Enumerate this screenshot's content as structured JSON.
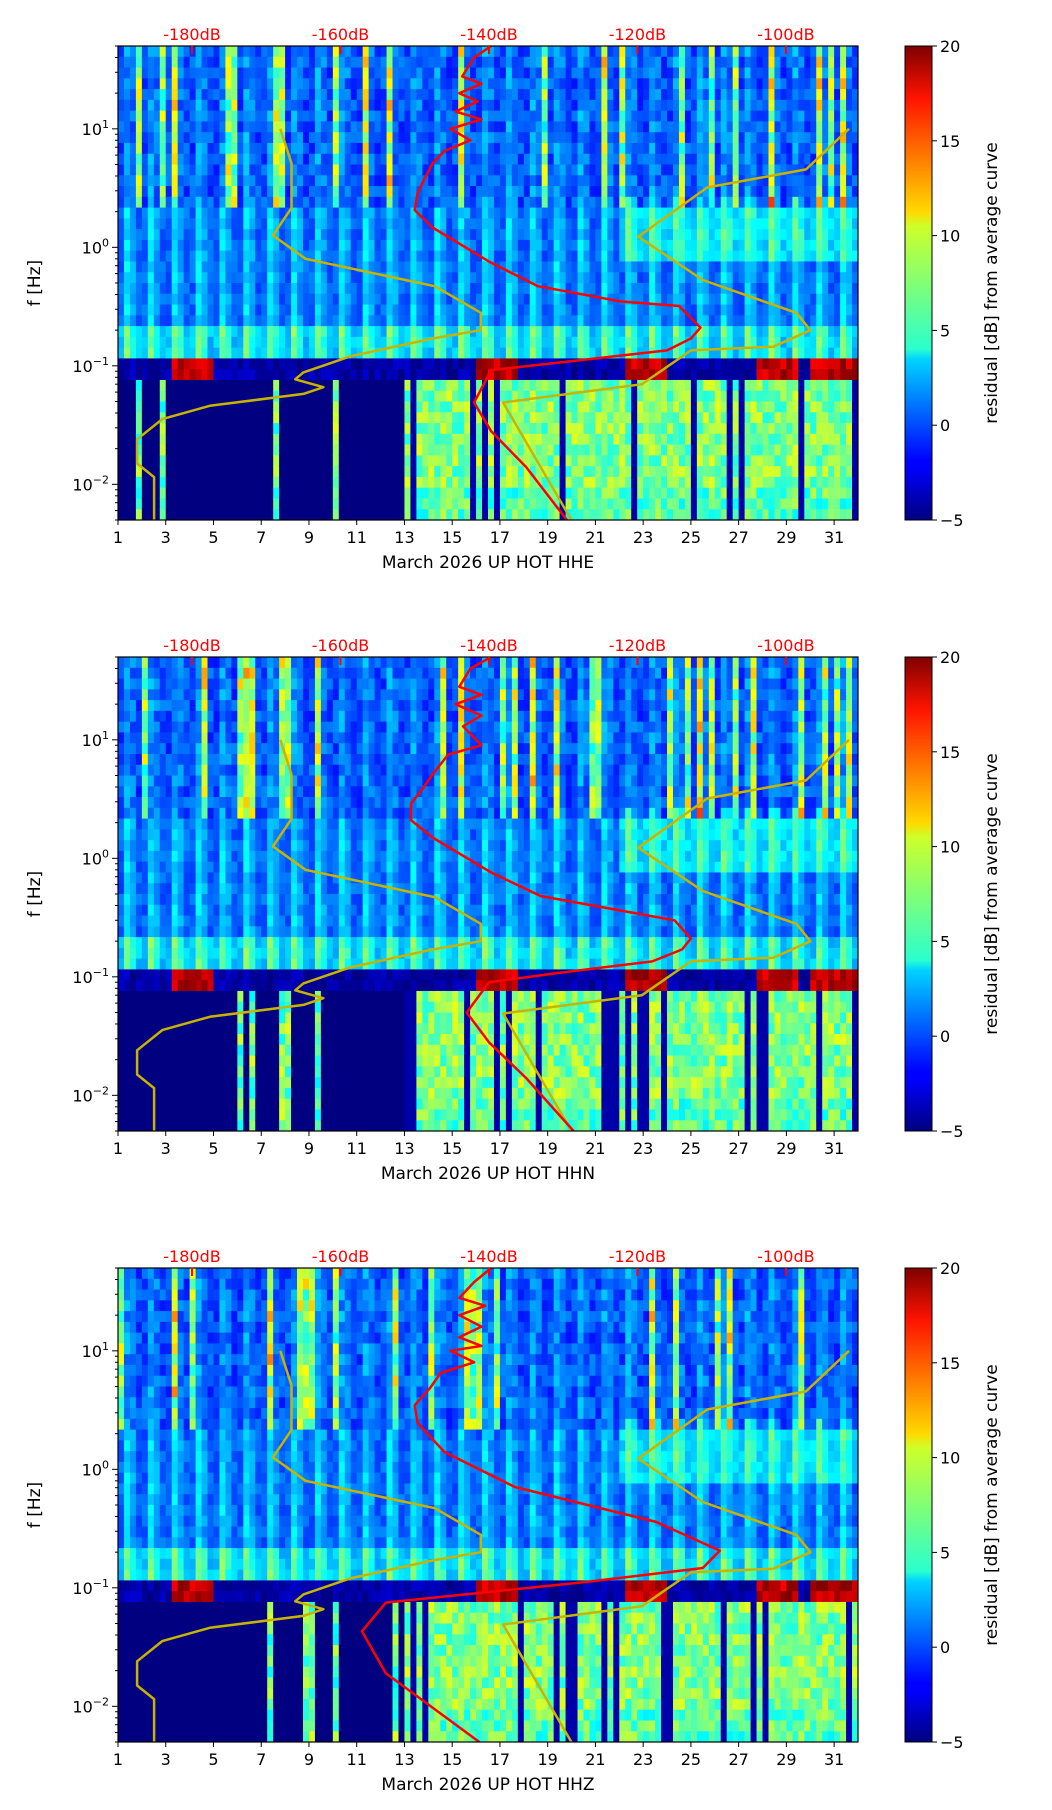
{
  "chart_data": [
    {
      "type": "heatmap",
      "title": "",
      "xlabel": "March 2026 UP HOT  HHE",
      "ylabel": "f [Hz]",
      "xlim": [
        1,
        32
      ],
      "ylim": [
        0.005,
        50
      ],
      "yscale": "log",
      "xticks": [
        "1",
        "3",
        "5",
        "7",
        "9",
        "11",
        "13",
        "15",
        "17",
        "19",
        "21",
        "23",
        "25",
        "27",
        "29",
        "31"
      ],
      "yticks": [
        "10^-2",
        "10^-1",
        "10^0",
        "10^1"
      ],
      "top_axis_ticks": [
        "-180dB",
        "-160dB",
        "-140dB",
        "-120dB",
        "-100dB"
      ],
      "colorbar": {
        "label": "residual [dB] from average curve",
        "range": [
          -5,
          20
        ],
        "ticks": [
          "−5",
          "0",
          "5",
          "10",
          "15",
          "20"
        ],
        "colormap": "jet"
      },
      "red_curve_dB_vs_f": [
        [
          -139.7,
          50
        ],
        [
          -142,
          40
        ],
        [
          -143.6,
          27.7
        ],
        [
          -141,
          24
        ],
        [
          -144,
          20
        ],
        [
          -141.5,
          17
        ],
        [
          -144.5,
          14
        ],
        [
          -141,
          12
        ],
        [
          -145.2,
          10
        ],
        [
          -142.5,
          8
        ],
        [
          -146,
          6.5
        ],
        [
          -147.6,
          5.1
        ],
        [
          -148.5,
          4
        ],
        [
          -149.6,
          2.9
        ],
        [
          -150,
          2.06
        ],
        [
          -147.6,
          1.47
        ],
        [
          -139.7,
          0.74
        ],
        [
          -133.4,
          0.47
        ],
        [
          -122.3,
          0.35
        ],
        [
          -114.4,
          0.32
        ],
        [
          -111.5,
          0.21
        ],
        [
          -112.8,
          0.17
        ],
        [
          -116,
          0.135
        ],
        [
          -130.2,
          0.107
        ],
        [
          -139.7,
          0.092
        ],
        [
          -142,
          0.049
        ],
        [
          -139.7,
          0.028
        ],
        [
          -135,
          0.014
        ],
        [
          -129.5,
          0.005
        ]
      ]
    },
    {
      "type": "heatmap",
      "title": "",
      "xlabel": "March 2026 UP HOT  HHN",
      "ylabel": "f [Hz]",
      "xlim": [
        1,
        32
      ],
      "ylim": [
        0.005,
        50
      ],
      "yscale": "log",
      "xticks": [
        "1",
        "3",
        "5",
        "7",
        "9",
        "11",
        "13",
        "15",
        "17",
        "19",
        "21",
        "23",
        "25",
        "27",
        "29",
        "31"
      ],
      "yticks": [
        "10^-2",
        "10^-1",
        "10^0",
        "10^1"
      ],
      "top_axis_ticks": [
        "-180dB",
        "-160dB",
        "-140dB",
        "-120dB",
        "-100dB"
      ],
      "colorbar": {
        "label": "residual [dB] from average curve",
        "range": [
          -5,
          20
        ],
        "ticks": [
          "−5",
          "0",
          "5",
          "10",
          "15",
          "20"
        ],
        "colormap": "jet"
      },
      "red_curve_dB_vs_f": [
        [
          -139.7,
          50
        ],
        [
          -142.5,
          40
        ],
        [
          -144,
          28
        ],
        [
          -141,
          24
        ],
        [
          -144.5,
          20
        ],
        [
          -141,
          16
        ],
        [
          -143.5,
          13
        ],
        [
          -141,
          9
        ],
        [
          -145.5,
          7.5
        ],
        [
          -147.6,
          5.1
        ],
        [
          -149,
          3.8
        ],
        [
          -150.5,
          2.9
        ],
        [
          -150.5,
          2.1
        ],
        [
          -147.6,
          1.5
        ],
        [
          -139.7,
          0.76
        ],
        [
          -133,
          0.48
        ],
        [
          -122,
          0.36
        ],
        [
          -115,
          0.3
        ],
        [
          -112.8,
          0.21
        ],
        [
          -114,
          0.17
        ],
        [
          -118,
          0.135
        ],
        [
          -131,
          0.107
        ],
        [
          -140,
          0.09
        ],
        [
          -143,
          0.05
        ],
        [
          -140,
          0.028
        ],
        [
          -135,
          0.014
        ],
        [
          -128.6,
          0.005
        ]
      ]
    },
    {
      "type": "heatmap",
      "title": "",
      "xlabel": "March 2026 UP HOT  HHZ",
      "ylabel": "f [Hz]",
      "xlim": [
        1,
        32
      ],
      "ylim": [
        0.005,
        50
      ],
      "yscale": "log",
      "xticks": [
        "1",
        "3",
        "5",
        "7",
        "9",
        "11",
        "13",
        "15",
        "17",
        "19",
        "21",
        "23",
        "25",
        "27",
        "29",
        "31"
      ],
      "yticks": [
        "10^-2",
        "10^-1",
        "10^0",
        "10^1"
      ],
      "top_axis_ticks": [
        "-180dB",
        "-160dB",
        "-140dB",
        "-120dB",
        "-100dB"
      ],
      "colorbar": {
        "label": "residual [dB] from average curve",
        "range": [
          -5,
          20
        ],
        "ticks": [
          "−5",
          "0",
          "5",
          "10",
          "15",
          "20"
        ],
        "colormap": "jet"
      },
      "red_curve_dB_vs_f": [
        [
          -139.7,
          50
        ],
        [
          -142,
          38
        ],
        [
          -144,
          28
        ],
        [
          -140.5,
          24
        ],
        [
          -144,
          20
        ],
        [
          -141,
          16
        ],
        [
          -144,
          13
        ],
        [
          -141,
          11
        ],
        [
          -145.2,
          10
        ],
        [
          -142,
          8
        ],
        [
          -146.5,
          6.5
        ],
        [
          -148,
          4.8
        ],
        [
          -150,
          3.47
        ],
        [
          -149.6,
          2.46
        ],
        [
          -146,
          1.4
        ],
        [
          -136.5,
          0.71
        ],
        [
          -117.5,
          0.36
        ],
        [
          -108.9,
          0.206
        ],
        [
          -111.2,
          0.147
        ],
        [
          -127,
          0.112
        ],
        [
          -153.9,
          0.075
        ],
        [
          -157.1,
          0.043
        ],
        [
          -153.9,
          0.019
        ],
        [
          -141.3,
          0.005
        ]
      ]
    }
  ],
  "reference_curves": {
    "nlnm_dB_vs_f": [
      [
        -168.1,
        10
      ],
      [
        -166.6,
        5.1
      ],
      [
        -166.6,
        2.15
      ],
      [
        -169.1,
        1.26
      ],
      [
        -164.7,
        0.8
      ],
      [
        -147.3,
        0.47
      ],
      [
        -141.1,
        0.28
      ],
      [
        -141.1,
        0.2
      ],
      [
        -147.6,
        0.17
      ],
      [
        -158.7,
        0.12
      ],
      [
        -165,
        0.088
      ],
      [
        -166.1,
        0.077
      ],
      [
        -162.3,
        0.066
      ],
      [
        -165,
        0.058
      ],
      [
        -177.6,
        0.046
      ],
      [
        -184,
        0.0355
      ],
      [
        -187.4,
        0.024
      ],
      [
        -187.4,
        0.015
      ],
      [
        -185.1,
        0.0115
      ],
      [
        -185.1,
        0.005
      ]
    ],
    "nhnm_dB_vs_f": [
      [
        -91.5,
        10
      ],
      [
        -97.3,
        4.55
      ],
      [
        -110.6,
        3.2
      ],
      [
        -119.9,
        1.23
      ],
      [
        -111.2,
        0.53
      ],
      [
        -98.6,
        0.28
      ],
      [
        -96.7,
        0.2
      ],
      [
        -101.7,
        0.145
      ],
      [
        -112.8,
        0.135
      ],
      [
        -119.4,
        0.07
      ],
      [
        -138.1,
        0.049
      ],
      [
        -128.9,
        0.005
      ]
    ]
  },
  "colors": {
    "psd_curve": "#ff0000",
    "noise_model": "#c8b400",
    "db_axis": "#ff0000"
  }
}
